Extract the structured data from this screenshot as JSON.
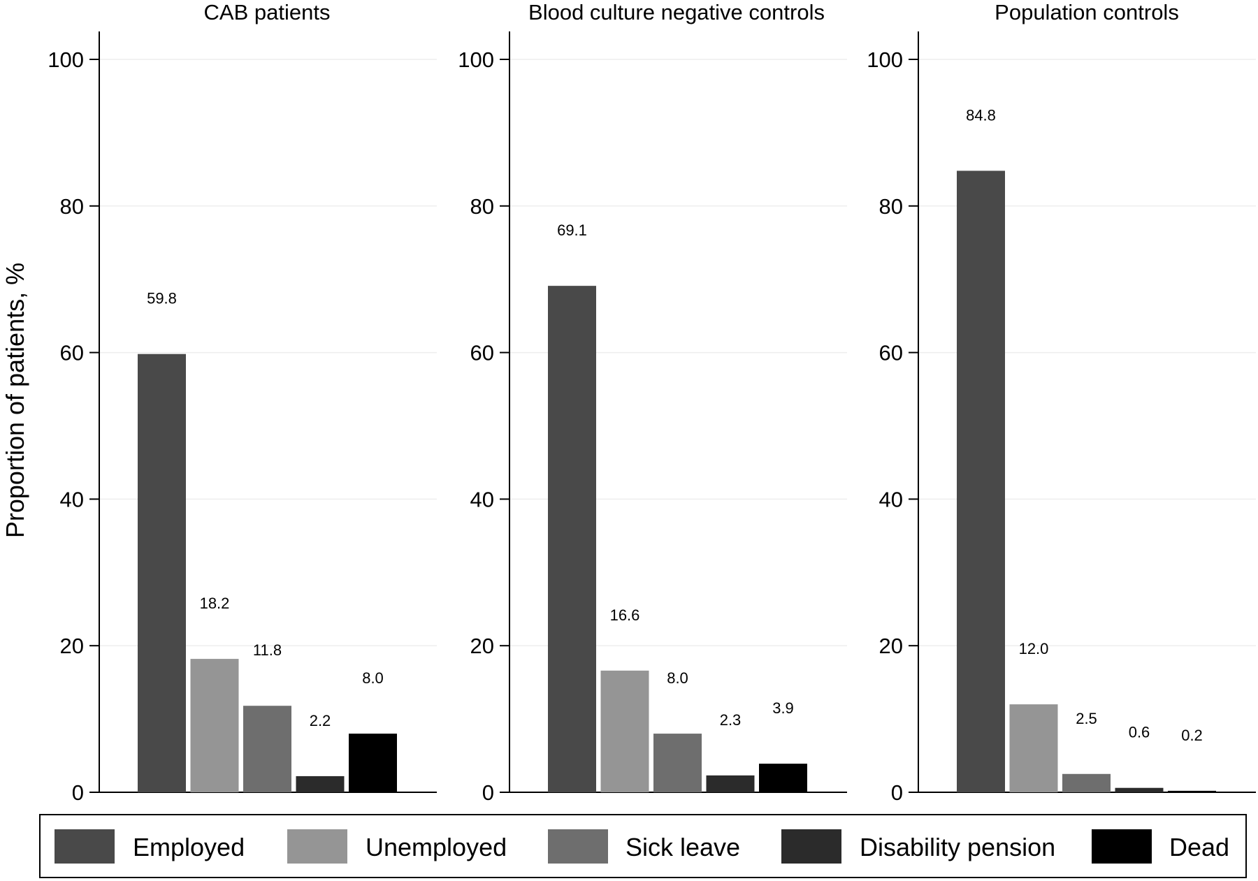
{
  "chart_data": {
    "type": "bar",
    "ylabel": "Proportion of patients, %",
    "ylim": [
      0,
      100
    ],
    "yticks": [
      0,
      20,
      40,
      60,
      80,
      100
    ],
    "grid": true,
    "legend_position": "bottom",
    "categories": [
      "Employed",
      "Unemployed",
      "Sick leave",
      "Disability pension",
      "Dead"
    ],
    "colors": {
      "Employed": "#494949",
      "Unemployed": "#959595",
      "Sick leave": "#6e6e6e",
      "Disability pension": "#2b2b2b",
      "Dead": "#000000"
    },
    "panels": [
      {
        "title": "CAB patients",
        "values": [
          59.8,
          18.2,
          11.8,
          2.2,
          8.0
        ],
        "labels": [
          "59.8",
          "18.2",
          "11.8",
          "2.2",
          "8.0"
        ]
      },
      {
        "title": "Blood culture negative controls",
        "values": [
          69.1,
          16.6,
          8.0,
          2.3,
          3.9
        ],
        "labels": [
          "69.1",
          "16.6",
          "8.0",
          "2.3",
          "3.9"
        ]
      },
      {
        "title": "Population controls",
        "values": [
          84.8,
          12.0,
          2.5,
          0.6,
          0.2
        ],
        "labels": [
          "84.8",
          "12.0",
          "2.5",
          "0.6",
          "0.2"
        ]
      }
    ]
  }
}
